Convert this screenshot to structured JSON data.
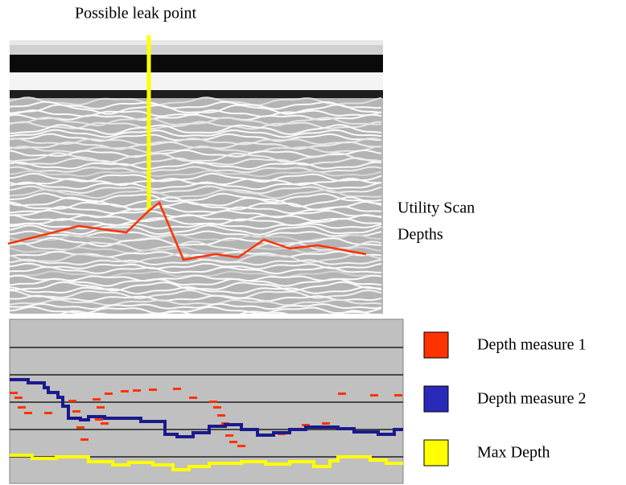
{
  "annotation": "Possible leak point",
  "scan_label": [
    "Utility Scan",
    "Depths"
  ],
  "legend": [
    {
      "label": "Depth measure 1",
      "color": "#ff3300"
    },
    {
      "label": "Depth measure 2",
      "color": "#2a2ab8"
    },
    {
      "label": "Max Depth",
      "color": "#ffff00"
    }
  ]
}
